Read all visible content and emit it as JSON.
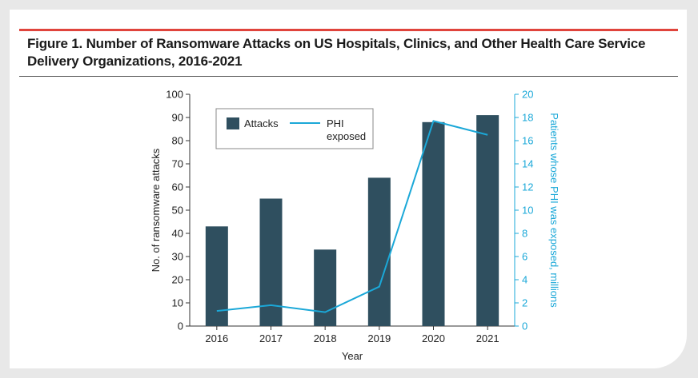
{
  "figure": {
    "title_line1": "Figure 1. Number of Ransomware Attacks on US Hospitals, Clinics, and Other Health Care Service",
    "title_line2": "Delivery Organizations, 2016-2021"
  },
  "colors": {
    "bar": "#2f4f5f",
    "line": "#1ba8d8",
    "accent_rule": "#e0443c"
  },
  "chart_data": {
    "type": "bar",
    "categories": [
      "2016",
      "2017",
      "2018",
      "2019",
      "2020",
      "2021"
    ],
    "series": [
      {
        "name": "Attacks",
        "type": "bar",
        "axis": "left",
        "values": [
          43,
          55,
          33,
          64,
          88,
          91
        ]
      },
      {
        "name": "PHI exposed",
        "type": "line",
        "axis": "right",
        "values": [
          1.3,
          1.8,
          1.2,
          3.4,
          17.7,
          16.5
        ]
      }
    ],
    "xlabel": "Year",
    "ylabel": "No. of ransomware attacks",
    "ylabel_right": "Patients whose PHI was exposed, millions",
    "ylim": [
      0,
      100
    ],
    "yticks": [
      0,
      10,
      20,
      30,
      40,
      50,
      60,
      70,
      80,
      90,
      100
    ],
    "ylim_right": [
      0,
      20
    ],
    "yticks_right": [
      0,
      2,
      4,
      6,
      8,
      10,
      12,
      14,
      16,
      18,
      20
    ],
    "legend": {
      "placement": "top-left",
      "bar_label": "Attacks",
      "line_label_line1": "PHI",
      "line_label_line2": "exposed"
    },
    "grid": false
  }
}
